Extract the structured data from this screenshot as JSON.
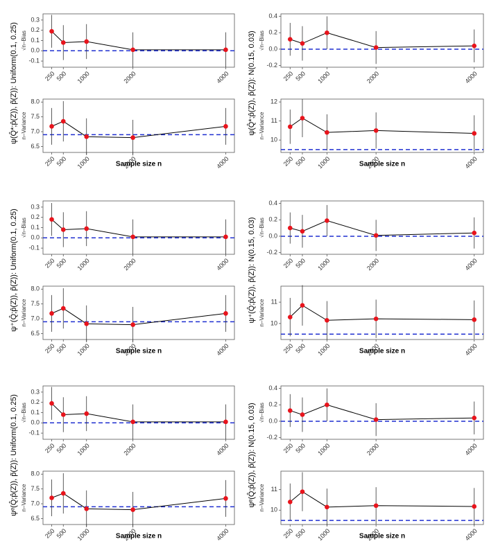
{
  "chart_data": [
    {
      "type": "line",
      "ylabel": "√n–Bias",
      "group_label": "ψ(Q̂*;p̂(Z)),  p̃(Z)): Uniform(0.1, 0.25)",
      "x": [
        250,
        500,
        1000,
        2000,
        4000
      ],
      "xlim": [
        62.5,
        4187.5
      ],
      "xticks": [
        250,
        500,
        1000,
        2000,
        4000
      ],
      "ylim": [
        -0.16,
        0.36
      ],
      "yticks": [
        -0.1,
        {
          "value": 0,
          "label": "0.0"
        },
        0.1,
        0.2,
        0.3
      ],
      "reference": 0,
      "reference_color": "#1f2fd0",
      "line_color": "#000000",
      "color": "#e8141c",
      "values": [
        0.19,
        0.08,
        0.09,
        0.01,
        0.01
      ],
      "errors": [
        0.16,
        0.17,
        0.17,
        0.17,
        0.17
      ]
    },
    {
      "type": "line",
      "ylabel": "n–Variance",
      "xlabel": "Sample size n",
      "x": [
        250,
        500,
        1000,
        2000,
        4000
      ],
      "xlim": [
        62.5,
        4187.5
      ],
      "xticks": [
        250,
        500,
        1000,
        2000,
        4000
      ],
      "ylim": [
        6.3,
        8.1
      ],
      "yticks": [
        6.5,
        {
          "value": 7,
          "label": "7.0"
        },
        7.5,
        {
          "value": 8,
          "label": "8.0"
        }
      ],
      "reference": 6.9,
      "reference_color": "#1f2fd0",
      "line_color": "#000000",
      "color": "#e8141c",
      "values": [
        7.18,
        7.35,
        6.83,
        6.8,
        7.18
      ],
      "errors": [
        0.62,
        0.68,
        0.62,
        0.6,
        0.62
      ]
    },
    {
      "type": "line",
      "ylabel": "√n–Bias",
      "group_label": "ψ(Q̂*;p̂(Z)),  p̃(Z)): N(0.15, 0.03)",
      "x": [
        250,
        500,
        1000,
        2000,
        4000
      ],
      "xlim": [
        62.5,
        4187.5
      ],
      "xticks": [
        250,
        500,
        1000,
        2000,
        4000
      ],
      "ylim": [
        -0.22,
        0.43
      ],
      "yticks": [
        -0.2,
        {
          "value": 0,
          "label": "0.0"
        },
        0.2,
        0.4
      ],
      "reference": 0,
      "reference_color": "#1f2fd0",
      "line_color": "#000000",
      "color": "#e8141c",
      "values": [
        0.12,
        0.07,
        0.2,
        0.02,
        0.04
      ],
      "errors": [
        0.2,
        0.21,
        0.2,
        0.2,
        0.2
      ]
    },
    {
      "type": "line",
      "ylabel": "n–Variance",
      "xlabel": "Sample size n",
      "x": [
        250,
        500,
        1000,
        2000,
        4000
      ],
      "xlim": [
        62.5,
        4187.5
      ],
      "xticks": [
        250,
        500,
        1000,
        2000,
        4000
      ],
      "ylim": [
        9.35,
        12.15
      ],
      "yticks": [
        10,
        11,
        12
      ],
      "reference": 9.5,
      "reference_color": "#1f2fd0",
      "line_color": "#000000",
      "color": "#e8141c",
      "values": [
        10.7,
        11.15,
        10.4,
        10.5,
        10.35
      ],
      "errors": [
        0.9,
        1.0,
        0.95,
        0.95,
        0.95
      ]
    },
    {
      "type": "line",
      "ylabel": "√n–Bias",
      "group_label": "ψ⁺(Q̂;p̂(Z)),  p̃(Z)): Uniform(0.1, 0.25)",
      "x": [
        250,
        500,
        1000,
        2000,
        4000
      ],
      "xlim": [
        62.5,
        4187.5
      ],
      "xticks": [
        250,
        500,
        1000,
        2000,
        4000
      ],
      "ylim": [
        -0.16,
        0.36
      ],
      "yticks": [
        -0.1,
        {
          "value": 0,
          "label": "0.0"
        },
        0.1,
        0.2,
        0.3
      ],
      "reference": 0,
      "reference_color": "#1f2fd0",
      "line_color": "#000000",
      "color": "#e8141c",
      "values": [
        0.18,
        0.08,
        0.09,
        0.01,
        0.01
      ],
      "errors": [
        0.16,
        0.17,
        0.17,
        0.17,
        0.17
      ]
    },
    {
      "type": "line",
      "ylabel": "n–Variance",
      "xlabel": "Sample size n",
      "x": [
        250,
        500,
        1000,
        2000,
        4000
      ],
      "xlim": [
        62.5,
        4187.5
      ],
      "xticks": [
        250,
        500,
        1000,
        2000,
        4000
      ],
      "ylim": [
        6.3,
        8.1
      ],
      "yticks": [
        6.5,
        {
          "value": 7,
          "label": "7.0"
        },
        7.5,
        {
          "value": 8,
          "label": "8.0"
        }
      ],
      "reference": 6.9,
      "reference_color": "#1f2fd0",
      "line_color": "#000000",
      "color": "#e8141c",
      "values": [
        7.18,
        7.35,
        6.83,
        6.8,
        7.18
      ],
      "errors": [
        0.62,
        0.68,
        0.62,
        0.6,
        0.62
      ]
    },
    {
      "type": "line",
      "ylabel": "√n–Bias",
      "group_label": "ψ⁺(Q̂;p̂(Z)),  p̃(Z)): N(0.15, 0.03)",
      "x": [
        250,
        500,
        1000,
        2000,
        4000
      ],
      "xlim": [
        62.5,
        4187.5
      ],
      "xticks": [
        250,
        500,
        1000,
        2000,
        4000
      ],
      "ylim": [
        -0.22,
        0.43
      ],
      "yticks": [
        -0.2,
        {
          "value": 0,
          "label": "0.0"
        },
        0.2,
        0.4
      ],
      "reference": 0,
      "reference_color": "#1f2fd0",
      "line_color": "#000000",
      "color": "#e8141c",
      "values": [
        0.1,
        0.06,
        0.19,
        0.01,
        0.04
      ],
      "errors": [
        0.19,
        0.2,
        0.19,
        0.19,
        0.19
      ]
    },
    {
      "type": "line",
      "ylabel": "n–Variance",
      "xlabel": "Sample size n",
      "x": [
        250,
        500,
        1000,
        2000,
        4000
      ],
      "xlim": [
        62.5,
        4187.5
      ],
      "xticks": [
        250,
        500,
        1000,
        2000,
        4000
      ],
      "ylim": [
        9.25,
        11.75
      ],
      "yticks": [
        10,
        11
      ],
      "reference": 9.5,
      "reference_color": "#1f2fd0",
      "line_color": "#000000",
      "color": "#e8141c",
      "values": [
        10.3,
        10.85,
        10.15,
        10.22,
        10.18
      ],
      "errors": [
        0.9,
        0.95,
        0.9,
        0.9,
        0.9
      ]
    },
    {
      "type": "line",
      "ylabel": "√n–Bias",
      "group_label": "ψᵉ(Q̂;p̂(Z)),  p̃(Z)): Uniform(0.1, 0.25)",
      "x": [
        250,
        500,
        1000,
        2000,
        4000
      ],
      "xlim": [
        62.5,
        4187.5
      ],
      "xticks": [
        250,
        500,
        1000,
        2000,
        4000
      ],
      "ylim": [
        -0.16,
        0.36
      ],
      "yticks": [
        -0.1,
        {
          "value": 0,
          "label": "0.0"
        },
        0.1,
        0.2,
        0.3
      ],
      "reference": 0,
      "reference_color": "#1f2fd0",
      "line_color": "#000000",
      "color": "#e8141c",
      "values": [
        0.19,
        0.08,
        0.09,
        0.01,
        0.01
      ],
      "errors": [
        0.16,
        0.17,
        0.17,
        0.17,
        0.17
      ]
    },
    {
      "type": "line",
      "ylabel": "n–Variance",
      "xlabel": "Sample size n",
      "x": [
        250,
        500,
        1000,
        2000,
        4000
      ],
      "xlim": [
        62.5,
        4187.5
      ],
      "xticks": [
        250,
        500,
        1000,
        2000,
        4000
      ],
      "ylim": [
        6.3,
        8.1
      ],
      "yticks": [
        6.5,
        {
          "value": 7,
          "label": "7.0"
        },
        7.5,
        {
          "value": 8,
          "label": "8.0"
        }
      ],
      "reference": 6.9,
      "reference_color": "#1f2fd0",
      "line_color": "#000000",
      "color": "#e8141c",
      "values": [
        7.2,
        7.35,
        6.83,
        6.8,
        7.18
      ],
      "errors": [
        0.62,
        0.68,
        0.62,
        0.6,
        0.62
      ]
    },
    {
      "type": "line",
      "ylabel": "√n–Bias",
      "group_label": "ψᵉ(Q̂;p̂(Z)),  p̃(Z)): N(0.15, 0.03)",
      "x": [
        250,
        500,
        1000,
        2000,
        4000
      ],
      "xlim": [
        62.5,
        4187.5
      ],
      "xticks": [
        250,
        500,
        1000,
        2000,
        4000
      ],
      "ylim": [
        -0.22,
        0.43
      ],
      "yticks": [
        -0.2,
        {
          "value": 0,
          "label": "0.0"
        },
        0.2,
        0.4
      ],
      "reference": 0,
      "reference_color": "#1f2fd0",
      "line_color": "#000000",
      "color": "#e8141c",
      "values": [
        0.13,
        0.08,
        0.2,
        0.02,
        0.04
      ],
      "errors": [
        0.2,
        0.21,
        0.2,
        0.2,
        0.2
      ]
    },
    {
      "type": "line",
      "ylabel": "n–Variance",
      "xlabel": "Sample size n",
      "x": [
        250,
        500,
        1000,
        2000,
        4000
      ],
      "xlim": [
        62.5,
        4187.5
      ],
      "xticks": [
        250,
        500,
        1000,
        2000,
        4000
      ],
      "ylim": [
        9.3,
        11.9
      ],
      "yticks": [
        10,
        11
      ],
      "reference": 9.5,
      "reference_color": "#1f2fd0",
      "line_color": "#000000",
      "color": "#e8141c",
      "values": [
        10.4,
        10.9,
        10.15,
        10.22,
        10.18
      ],
      "errors": [
        0.9,
        0.95,
        0.9,
        0.9,
        0.9
      ]
    }
  ]
}
